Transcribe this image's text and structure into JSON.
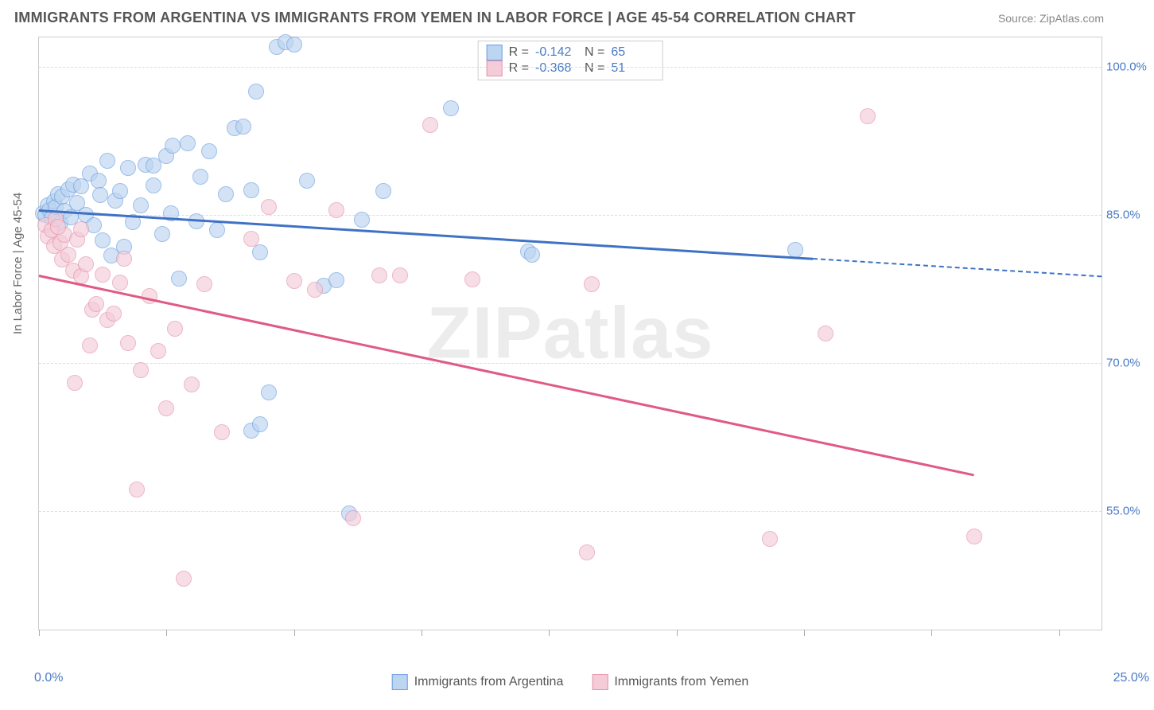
{
  "header": {
    "title": "IMMIGRANTS FROM ARGENTINA VS IMMIGRANTS FROM YEMEN IN LABOR FORCE | AGE 45-54 CORRELATION CHART",
    "source": "Source: ZipAtlas.com"
  },
  "chart": {
    "type": "scatter",
    "watermark": "ZIPatlas",
    "ylabel": "In Labor Force | Age 45-54",
    "xlim": [
      0,
      25
    ],
    "ylim": [
      43,
      103
    ],
    "xticks": [
      0,
      3,
      6,
      9,
      12,
      15,
      18,
      21,
      24
    ],
    "xtick_labels": {
      "left": "0.0%",
      "right": "25.0%"
    },
    "yticks": [
      {
        "v": 55,
        "label": "55.0%"
      },
      {
        "v": 70,
        "label": "70.0%"
      },
      {
        "v": 85,
        "label": "85.0%"
      },
      {
        "v": 100,
        "label": "100.0%"
      }
    ],
    "background_color": "#ffffff",
    "grid_color": "#dddddd",
    "label_color": "#4a7ac7",
    "axis_label_color": "#666666",
    "marker_radius": 10,
    "series": [
      {
        "name": "Immigrants from Argentina",
        "fill": "#bcd5f0",
        "stroke": "#6a9de0",
        "reg_color": "#3f72c5",
        "R": "-0.142",
        "N": "65",
        "regline": {
          "x1": 0,
          "y1": 85.6,
          "x2": 18.2,
          "y2": 80.7
        },
        "regline_dash": {
          "x1": 18.2,
          "y1": 80.7,
          "x2": 25,
          "y2": 78.9
        },
        "points": [
          {
            "x": 0.1,
            "y": 85.2
          },
          {
            "x": 0.15,
            "y": 85.0
          },
          {
            "x": 0.2,
            "y": 86.0
          },
          {
            "x": 0.25,
            "y": 85.5
          },
          {
            "x": 0.3,
            "y": 84.7
          },
          {
            "x": 0.35,
            "y": 86.4
          },
          {
            "x": 0.4,
            "y": 85.8
          },
          {
            "x": 0.45,
            "y": 87.1
          },
          {
            "x": 0.5,
            "y": 84.2
          },
          {
            "x": 0.55,
            "y": 86.9
          },
          {
            "x": 0.6,
            "y": 85.4
          },
          {
            "x": 0.7,
            "y": 87.6
          },
          {
            "x": 0.75,
            "y": 84.8
          },
          {
            "x": 0.8,
            "y": 88.1
          },
          {
            "x": 0.9,
            "y": 86.2
          },
          {
            "x": 1.0,
            "y": 87.9
          },
          {
            "x": 1.1,
            "y": 85.0
          },
          {
            "x": 1.2,
            "y": 89.2
          },
          {
            "x": 1.3,
            "y": 84.0
          },
          {
            "x": 1.4,
            "y": 88.5
          },
          {
            "x": 1.5,
            "y": 82.4
          },
          {
            "x": 1.6,
            "y": 90.5
          },
          {
            "x": 1.7,
            "y": 80.9
          },
          {
            "x": 1.8,
            "y": 86.5
          },
          {
            "x": 1.9,
            "y": 87.4
          },
          {
            "x": 2.0,
            "y": 81.8
          },
          {
            "x": 2.1,
            "y": 89.8
          },
          {
            "x": 2.2,
            "y": 84.3
          },
          {
            "x": 2.4,
            "y": 86.0
          },
          {
            "x": 2.5,
            "y": 90.1
          },
          {
            "x": 2.7,
            "y": 88.0
          },
          {
            "x": 2.9,
            "y": 83.1
          },
          {
            "x": 3.0,
            "y": 91.0
          },
          {
            "x": 3.1,
            "y": 85.2
          },
          {
            "x": 3.3,
            "y": 78.6
          },
          {
            "x": 3.5,
            "y": 92.3
          },
          {
            "x": 3.7,
            "y": 84.4
          },
          {
            "x": 3.8,
            "y": 88.9
          },
          {
            "x": 4.0,
            "y": 91.5
          },
          {
            "x": 4.2,
            "y": 83.5
          },
          {
            "x": 4.4,
            "y": 87.1
          },
          {
            "x": 4.6,
            "y": 93.8
          },
          {
            "x": 4.8,
            "y": 94.0
          },
          {
            "x": 5.0,
            "y": 87.5
          },
          {
            "x": 5.2,
            "y": 81.2
          },
          {
            "x": 5.4,
            "y": 67.0
          },
          {
            "x": 5.6,
            "y": 102.0
          },
          {
            "x": 5.8,
            "y": 102.5
          },
          {
            "x": 6.0,
            "y": 102.3
          },
          {
            "x": 5.1,
            "y": 97.5
          },
          {
            "x": 5.0,
            "y": 63.2
          },
          {
            "x": 5.2,
            "y": 63.8
          },
          {
            "x": 6.3,
            "y": 88.5
          },
          {
            "x": 6.7,
            "y": 77.8
          },
          {
            "x": 7.0,
            "y": 78.4
          },
          {
            "x": 7.3,
            "y": 54.8
          },
          {
            "x": 7.6,
            "y": 84.5
          },
          {
            "x": 8.1,
            "y": 87.4
          },
          {
            "x": 3.15,
            "y": 92.0
          },
          {
            "x": 9.7,
            "y": 95.8
          },
          {
            "x": 11.5,
            "y": 81.3
          },
          {
            "x": 11.6,
            "y": 81.0
          },
          {
            "x": 17.8,
            "y": 81.5
          },
          {
            "x": 2.7,
            "y": 90.0
          },
          {
            "x": 1.45,
            "y": 87.0
          }
        ]
      },
      {
        "name": "Immigrants from Yemen",
        "fill": "#f4ccd8",
        "stroke": "#e591ab",
        "reg_color": "#e05a83",
        "R": "-0.368",
        "N": "51",
        "regline": {
          "x1": 0,
          "y1": 79.0,
          "x2": 22.0,
          "y2": 58.8
        },
        "points": [
          {
            "x": 0.15,
            "y": 84.0
          },
          {
            "x": 0.2,
            "y": 82.8
          },
          {
            "x": 0.3,
            "y": 83.5
          },
          {
            "x": 0.35,
            "y": 81.9
          },
          {
            "x": 0.4,
            "y": 84.6
          },
          {
            "x": 0.5,
            "y": 82.2
          },
          {
            "x": 0.55,
            "y": 80.5
          },
          {
            "x": 0.6,
            "y": 83.0
          },
          {
            "x": 0.7,
            "y": 81.0
          },
          {
            "x": 0.8,
            "y": 79.4
          },
          {
            "x": 0.9,
            "y": 82.5
          },
          {
            "x": 1.0,
            "y": 78.8
          },
          {
            "x": 1.1,
            "y": 80.0
          },
          {
            "x": 1.2,
            "y": 71.8
          },
          {
            "x": 1.25,
            "y": 75.4
          },
          {
            "x": 1.35,
            "y": 76.0
          },
          {
            "x": 1.5,
            "y": 79.0
          },
          {
            "x": 1.6,
            "y": 74.4
          },
          {
            "x": 1.75,
            "y": 75.0
          },
          {
            "x": 1.9,
            "y": 78.2
          },
          {
            "x": 2.0,
            "y": 80.6
          },
          {
            "x": 2.1,
            "y": 72.0
          },
          {
            "x": 2.3,
            "y": 57.2
          },
          {
            "x": 2.4,
            "y": 69.3
          },
          {
            "x": 2.6,
            "y": 76.8
          },
          {
            "x": 2.8,
            "y": 71.2
          },
          {
            "x": 3.0,
            "y": 65.4
          },
          {
            "x": 3.2,
            "y": 73.5
          },
          {
            "x": 3.4,
            "y": 48.2
          },
          {
            "x": 3.6,
            "y": 67.8
          },
          {
            "x": 3.9,
            "y": 78.0
          },
          {
            "x": 4.3,
            "y": 63.0
          },
          {
            "x": 5.0,
            "y": 82.6
          },
          {
            "x": 5.4,
            "y": 85.8
          },
          {
            "x": 6.0,
            "y": 78.3
          },
          {
            "x": 6.5,
            "y": 77.4
          },
          {
            "x": 7.0,
            "y": 85.5
          },
          {
            "x": 7.4,
            "y": 54.3
          },
          {
            "x": 8.0,
            "y": 78.9
          },
          {
            "x": 8.5,
            "y": 78.9
          },
          {
            "x": 9.2,
            "y": 94.1
          },
          {
            "x": 10.2,
            "y": 78.5
          },
          {
            "x": 12.9,
            "y": 50.8
          },
          {
            "x": 13.0,
            "y": 78.0
          },
          {
            "x": 17.2,
            "y": 52.2
          },
          {
            "x": 18.5,
            "y": 73.0
          },
          {
            "x": 19.5,
            "y": 95.0
          },
          {
            "x": 22.0,
            "y": 52.4
          },
          {
            "x": 0.85,
            "y": 68.0
          },
          {
            "x": 1.0,
            "y": 83.6
          },
          {
            "x": 0.45,
            "y": 83.8
          }
        ]
      }
    ]
  }
}
